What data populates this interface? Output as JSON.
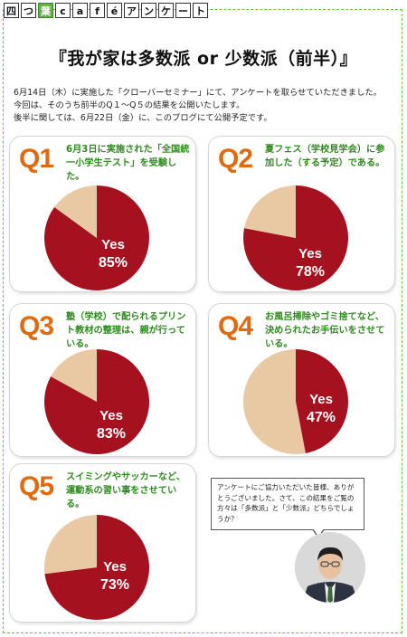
{
  "logo": [
    "四",
    "つ",
    "葉",
    "c",
    "a",
    "f",
    "é",
    "ア",
    "ン",
    "ケ",
    "ー",
    "ト"
  ],
  "title": "『我が家は多数派 or 少数派（前半）』",
  "intro": [
    "6月14日（木）に実施した「クローバーセミナー」にて、アンケートを取らせていただきました。",
    "今回は、そのうち前半のQ１～Q５の結果を公開いたします。",
    "後半に関しては、6月22日（金）に、このブログにて公開予定です。"
  ],
  "questions": [
    {
      "label": "Q1",
      "text": "6月3日に実施された「全国統一小学生テスト」を受験した。",
      "yes_label": "Yes",
      "percent_label": "85%"
    },
    {
      "label": "Q2",
      "text": "夏フェス（学校見学会）に参加した（する予定）である。",
      "yes_label": "Yes",
      "percent_label": "78%"
    },
    {
      "label": "Q3",
      "text": "塾（学校）で配られるプリント教材の整理は、親が行っている。",
      "yes_label": "Yes",
      "percent_label": "83%"
    },
    {
      "label": "Q4",
      "text": "お風呂掃除やゴミ捨てなど、決められたお手伝いをさせている。",
      "yes_label": "Yes",
      "percent_label": "47%"
    },
    {
      "label": "Q5",
      "text": "スイミングやサッカーなど、運動系の習い事をさせている。",
      "yes_label": "Yes",
      "percent_label": "73%"
    }
  ],
  "chart_data": [
    {
      "type": "pie",
      "categories": [
        "Yes",
        ""
      ],
      "values": [
        85,
        15
      ]
    },
    {
      "type": "pie",
      "categories": [
        "Yes",
        ""
      ],
      "values": [
        78,
        22
      ]
    },
    {
      "type": "pie",
      "categories": [
        "Yes",
        ""
      ],
      "values": [
        83,
        17
      ]
    },
    {
      "type": "pie",
      "categories": [
        "Yes",
        ""
      ],
      "values": [
        47,
        53
      ]
    },
    {
      "type": "pie",
      "categories": [
        "Yes",
        ""
      ],
      "values": [
        73,
        27
      ]
    }
  ],
  "colors": {
    "yes": "#a5111e",
    "no": "#e8c9a4",
    "accent": "#e06a10",
    "question": "#2e8b1e"
  },
  "bubble_text": "アンケートにご協力いただいた皆様、ありがとうございました。さて、この結果をご覧の方々は「多数派」と「少数派」どちらでしょうか？"
}
